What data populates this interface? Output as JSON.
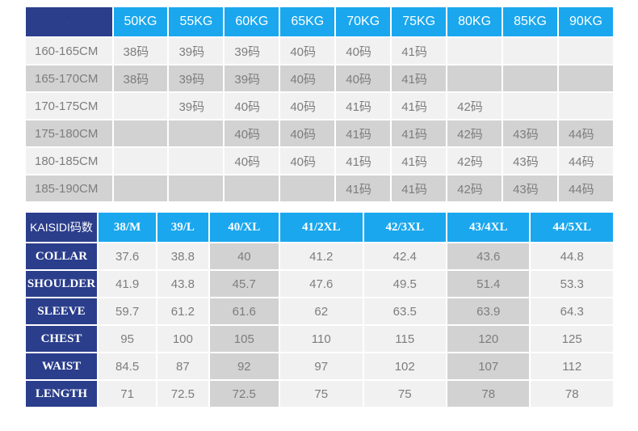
{
  "weight_table": {
    "corner_label": ".",
    "headers": [
      "50KG",
      "55KG",
      "60KG",
      "65KG",
      "70KG",
      "75KG",
      "80KG",
      "85KG",
      "90KG"
    ],
    "rows": [
      {
        "label": "160-165CM",
        "cells": [
          "38码",
          "39码",
          "39码",
          "40码",
          "40码",
          "41码",
          "",
          "",
          ""
        ]
      },
      {
        "label": "165-170CM",
        "cells": [
          "38码",
          "39码",
          "39码",
          "40码",
          "40码",
          "41码",
          "",
          "",
          ""
        ]
      },
      {
        "label": "170-175CM",
        "cells": [
          "",
          "39码",
          "40码",
          "40码",
          "41码",
          "41码",
          "42码",
          "",
          ""
        ]
      },
      {
        "label": "175-180CM",
        "cells": [
          "",
          "",
          "40码",
          "40码",
          "41码",
          "41码",
          "42码",
          "43码",
          "44码"
        ]
      },
      {
        "label": "180-185CM",
        "cells": [
          "",
          "",
          "40码",
          "40码",
          "41码",
          "41码",
          "42码",
          "43码",
          "44码"
        ]
      },
      {
        "label": "185-190CM",
        "cells": [
          "",
          "",
          "",
          "",
          "41码",
          "41码",
          "42码",
          "43码",
          "44码"
        ]
      }
    ]
  },
  "measure_table": {
    "corner_label": "KAISIDI码数",
    "headers": [
      "38/M",
      "39/L",
      "40/XL",
      "41/2XL",
      "42/3XL",
      "43/4XL",
      "44/5XL"
    ],
    "rows": [
      {
        "label": "COLLAR",
        "cells": [
          "37.6",
          "38.8",
          "40",
          "41.2",
          "42.4",
          "43.6",
          "44.8"
        ]
      },
      {
        "label": "SHOULDER",
        "cells": [
          "41.9",
          "43.8",
          "45.7",
          "47.6",
          "49.5",
          "51.4",
          "53.3"
        ]
      },
      {
        "label": "SLEEVE",
        "cells": [
          "59.7",
          "61.2",
          "61.6",
          "62",
          "63.5",
          "63.9",
          "64.3"
        ]
      },
      {
        "label": "CHEST",
        "cells": [
          "95",
          "100",
          "105",
          "110",
          "115",
          "120",
          "125"
        ]
      },
      {
        "label": "WAIST",
        "cells": [
          "84.5",
          "87",
          "92",
          "97",
          "102",
          "107",
          "112"
        ]
      },
      {
        "label": "LENGTH",
        "cells": [
          "71",
          "72.5",
          "72.5",
          "75",
          "75",
          "78",
          "78"
        ]
      }
    ]
  },
  "colors": {
    "navy": "#2b3e8c",
    "blue": "#1aa7ee",
    "light_gray": "#f1f1f1",
    "dark_gray": "#d2d2d2",
    "text_gray": "#7d7d7d"
  }
}
